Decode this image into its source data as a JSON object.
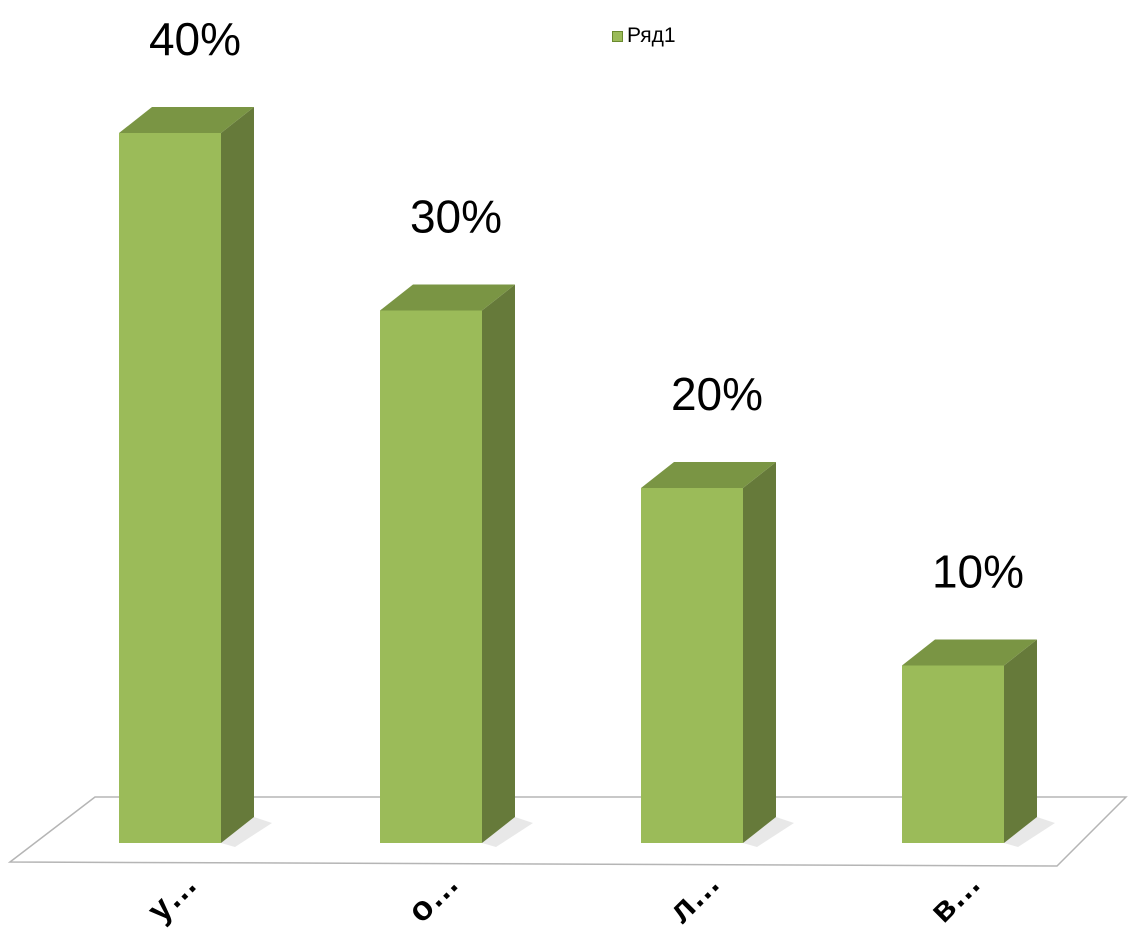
{
  "chart_data": {
    "type": "bar",
    "style": "3d-column",
    "categories": [
      "у…",
      "о…",
      "л…",
      "в…"
    ],
    "series": [
      {
        "name": "Ряд1",
        "values": [
          40,
          30,
          20,
          10
        ]
      }
    ],
    "data_labels": [
      "40%",
      "30%",
      "20%",
      "10%"
    ],
    "ylim": [
      0,
      45
    ],
    "grid": false,
    "legend_position": "top-center",
    "colors": {
      "front": "#9bbb59",
      "side": "#667a3a",
      "top": "#7a9544",
      "floor_stroke": "#b5b5b5"
    }
  }
}
